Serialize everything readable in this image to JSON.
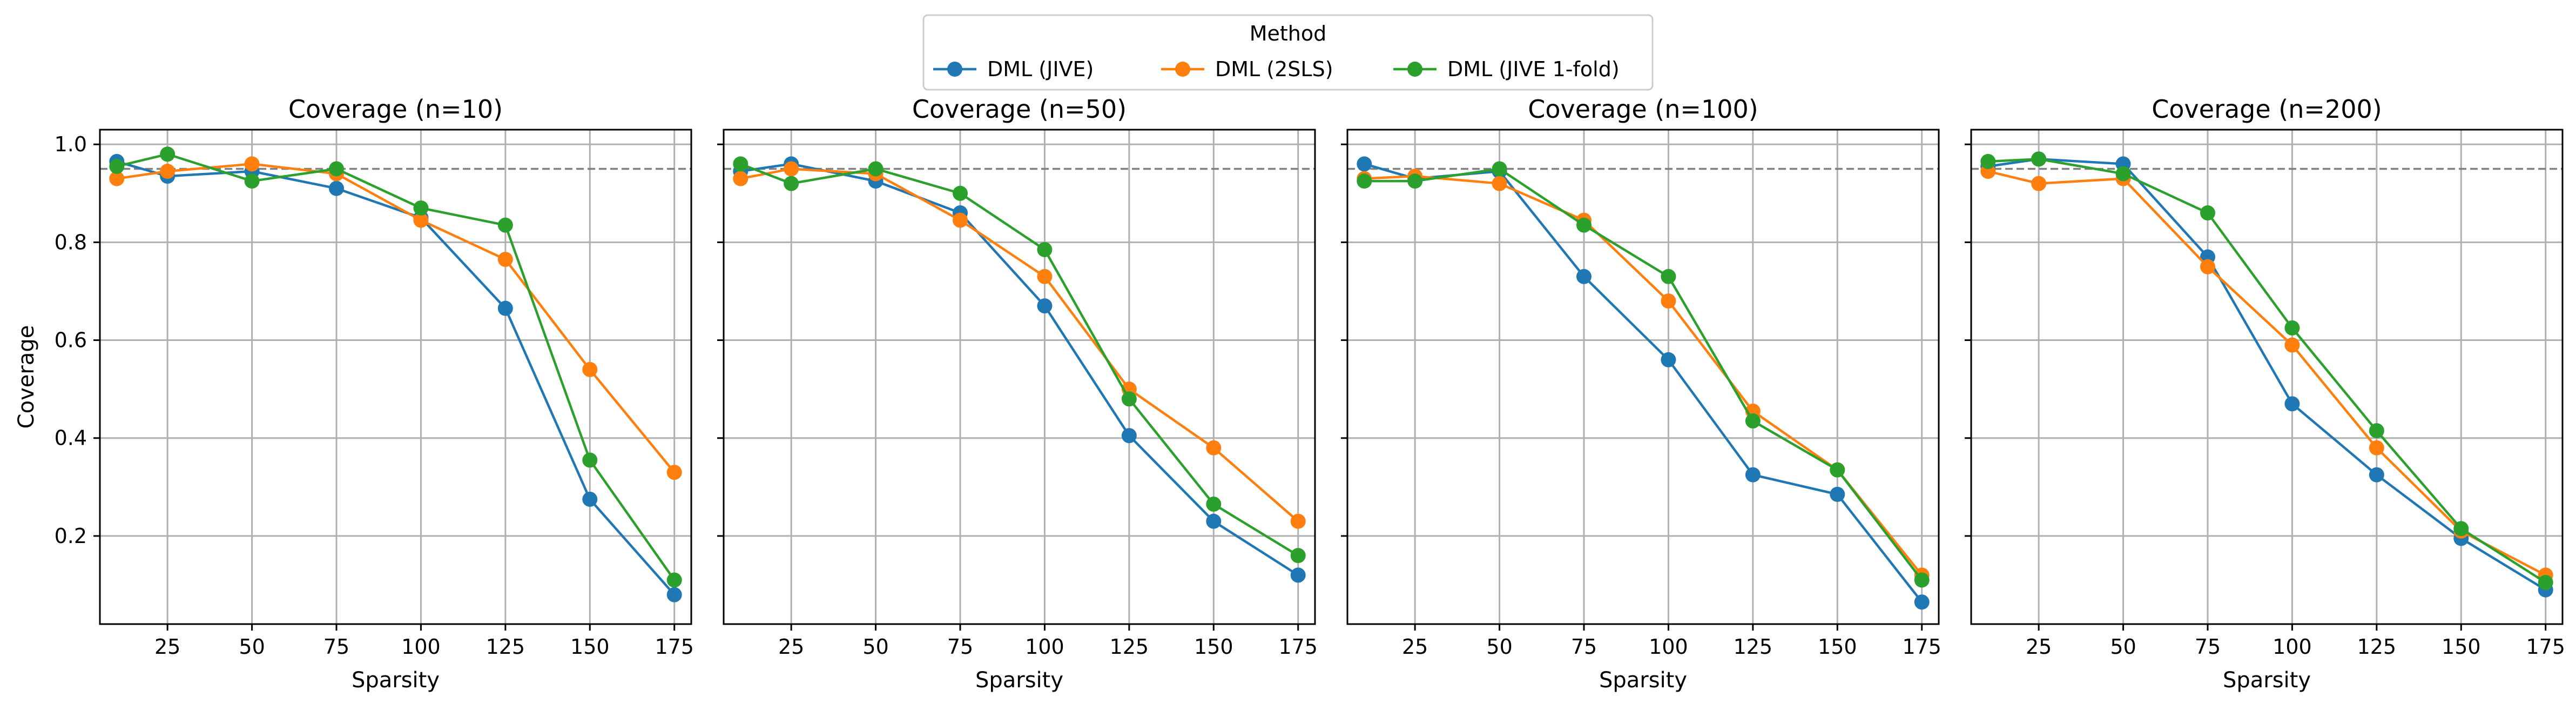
{
  "legend": {
    "title": "Method",
    "placement": "top-center"
  },
  "y_axis_label": "Coverage",
  "x_axis_label": "Sparsity",
  "series_styles": [
    {
      "name": "DML (JIVE)",
      "color": "#1f77b4"
    },
    {
      "name": "DML (2SLS)",
      "color": "#ff7f0e"
    },
    {
      "name": "DML (JIVE 1-fold)",
      "color": "#2ca02c"
    }
  ],
  "chart_data": [
    {
      "type": "line",
      "title": "Coverage (n=10)",
      "xlabel": "Sparsity",
      "ylabel": "Coverage",
      "x": [
        10,
        25,
        50,
        75,
        100,
        125,
        150,
        175
      ],
      "xlim": [
        5,
        180
      ],
      "ylim": [
        0.02,
        1.03
      ],
      "xticks": [
        25,
        50,
        75,
        100,
        125,
        150,
        175
      ],
      "yticks": [
        0.2,
        0.4,
        0.6,
        0.8,
        1.0
      ],
      "reference_line": 0.95,
      "grid": true,
      "series": [
        {
          "name": "DML (JIVE)",
          "values": [
            0.965,
            0.935,
            0.945,
            0.91,
            0.85,
            0.665,
            0.275,
            0.08
          ]
        },
        {
          "name": "DML (2SLS)",
          "values": [
            0.93,
            0.945,
            0.96,
            0.94,
            0.845,
            0.765,
            0.54,
            0.33
          ]
        },
        {
          "name": "DML (JIVE 1-fold)",
          "values": [
            0.955,
            0.98,
            0.925,
            0.95,
            0.87,
            0.835,
            0.355,
            0.11
          ]
        }
      ]
    },
    {
      "type": "line",
      "title": "Coverage (n=50)",
      "xlabel": "Sparsity",
      "ylabel": "",
      "x": [
        10,
        25,
        50,
        75,
        100,
        125,
        150,
        175
      ],
      "xlim": [
        5,
        180
      ],
      "ylim": [
        0.02,
        1.03
      ],
      "xticks": [
        25,
        50,
        75,
        100,
        125,
        150,
        175
      ],
      "yticks": [
        0.2,
        0.4,
        0.6,
        0.8,
        1.0
      ],
      "reference_line": 0.95,
      "grid": true,
      "series": [
        {
          "name": "DML (JIVE)",
          "values": [
            0.945,
            0.96,
            0.925,
            0.86,
            0.67,
            0.405,
            0.23,
            0.12
          ]
        },
        {
          "name": "DML (2SLS)",
          "values": [
            0.93,
            0.95,
            0.94,
            0.845,
            0.73,
            0.5,
            0.38,
            0.23
          ]
        },
        {
          "name": "DML (JIVE 1-fold)",
          "values": [
            0.96,
            0.92,
            0.95,
            0.9,
            0.785,
            0.48,
            0.265,
            0.16
          ]
        }
      ]
    },
    {
      "type": "line",
      "title": "Coverage (n=100)",
      "xlabel": "Sparsity",
      "ylabel": "",
      "x": [
        10,
        25,
        50,
        75,
        100,
        125,
        150,
        175
      ],
      "xlim": [
        5,
        180
      ],
      "ylim": [
        0.02,
        1.03
      ],
      "xticks": [
        25,
        50,
        75,
        100,
        125,
        150,
        175
      ],
      "yticks": [
        0.2,
        0.4,
        0.6,
        0.8,
        1.0
      ],
      "reference_line": 0.95,
      "grid": true,
      "series": [
        {
          "name": "DML (JIVE)",
          "values": [
            0.96,
            0.93,
            0.945,
            0.73,
            0.56,
            0.325,
            0.285,
            0.065
          ]
        },
        {
          "name": "DML (2SLS)",
          "values": [
            0.93,
            0.935,
            0.92,
            0.845,
            0.68,
            0.455,
            0.335,
            0.12
          ]
        },
        {
          "name": "DML (JIVE 1-fold)",
          "values": [
            0.925,
            0.925,
            0.95,
            0.835,
            0.73,
            0.435,
            0.335,
            0.11
          ]
        }
      ]
    },
    {
      "type": "line",
      "title": "Coverage (n=200)",
      "xlabel": "Sparsity",
      "ylabel": "",
      "x": [
        10,
        25,
        50,
        75,
        100,
        125,
        150,
        175
      ],
      "xlim": [
        5,
        180
      ],
      "ylim": [
        0.02,
        1.03
      ],
      "xticks": [
        25,
        50,
        75,
        100,
        125,
        150,
        175
      ],
      "yticks": [
        0.2,
        0.4,
        0.6,
        0.8,
        1.0
      ],
      "reference_line": 0.95,
      "grid": true,
      "series": [
        {
          "name": "DML (JIVE)",
          "values": [
            0.955,
            0.97,
            0.96,
            0.77,
            0.47,
            0.325,
            0.195,
            0.09
          ]
        },
        {
          "name": "DML (2SLS)",
          "values": [
            0.945,
            0.92,
            0.93,
            0.75,
            0.59,
            0.38,
            0.21,
            0.12
          ]
        },
        {
          "name": "DML (JIVE 1-fold)",
          "values": [
            0.965,
            0.97,
            0.94,
            0.86,
            0.625,
            0.415,
            0.215,
            0.105
          ]
        }
      ]
    }
  ]
}
